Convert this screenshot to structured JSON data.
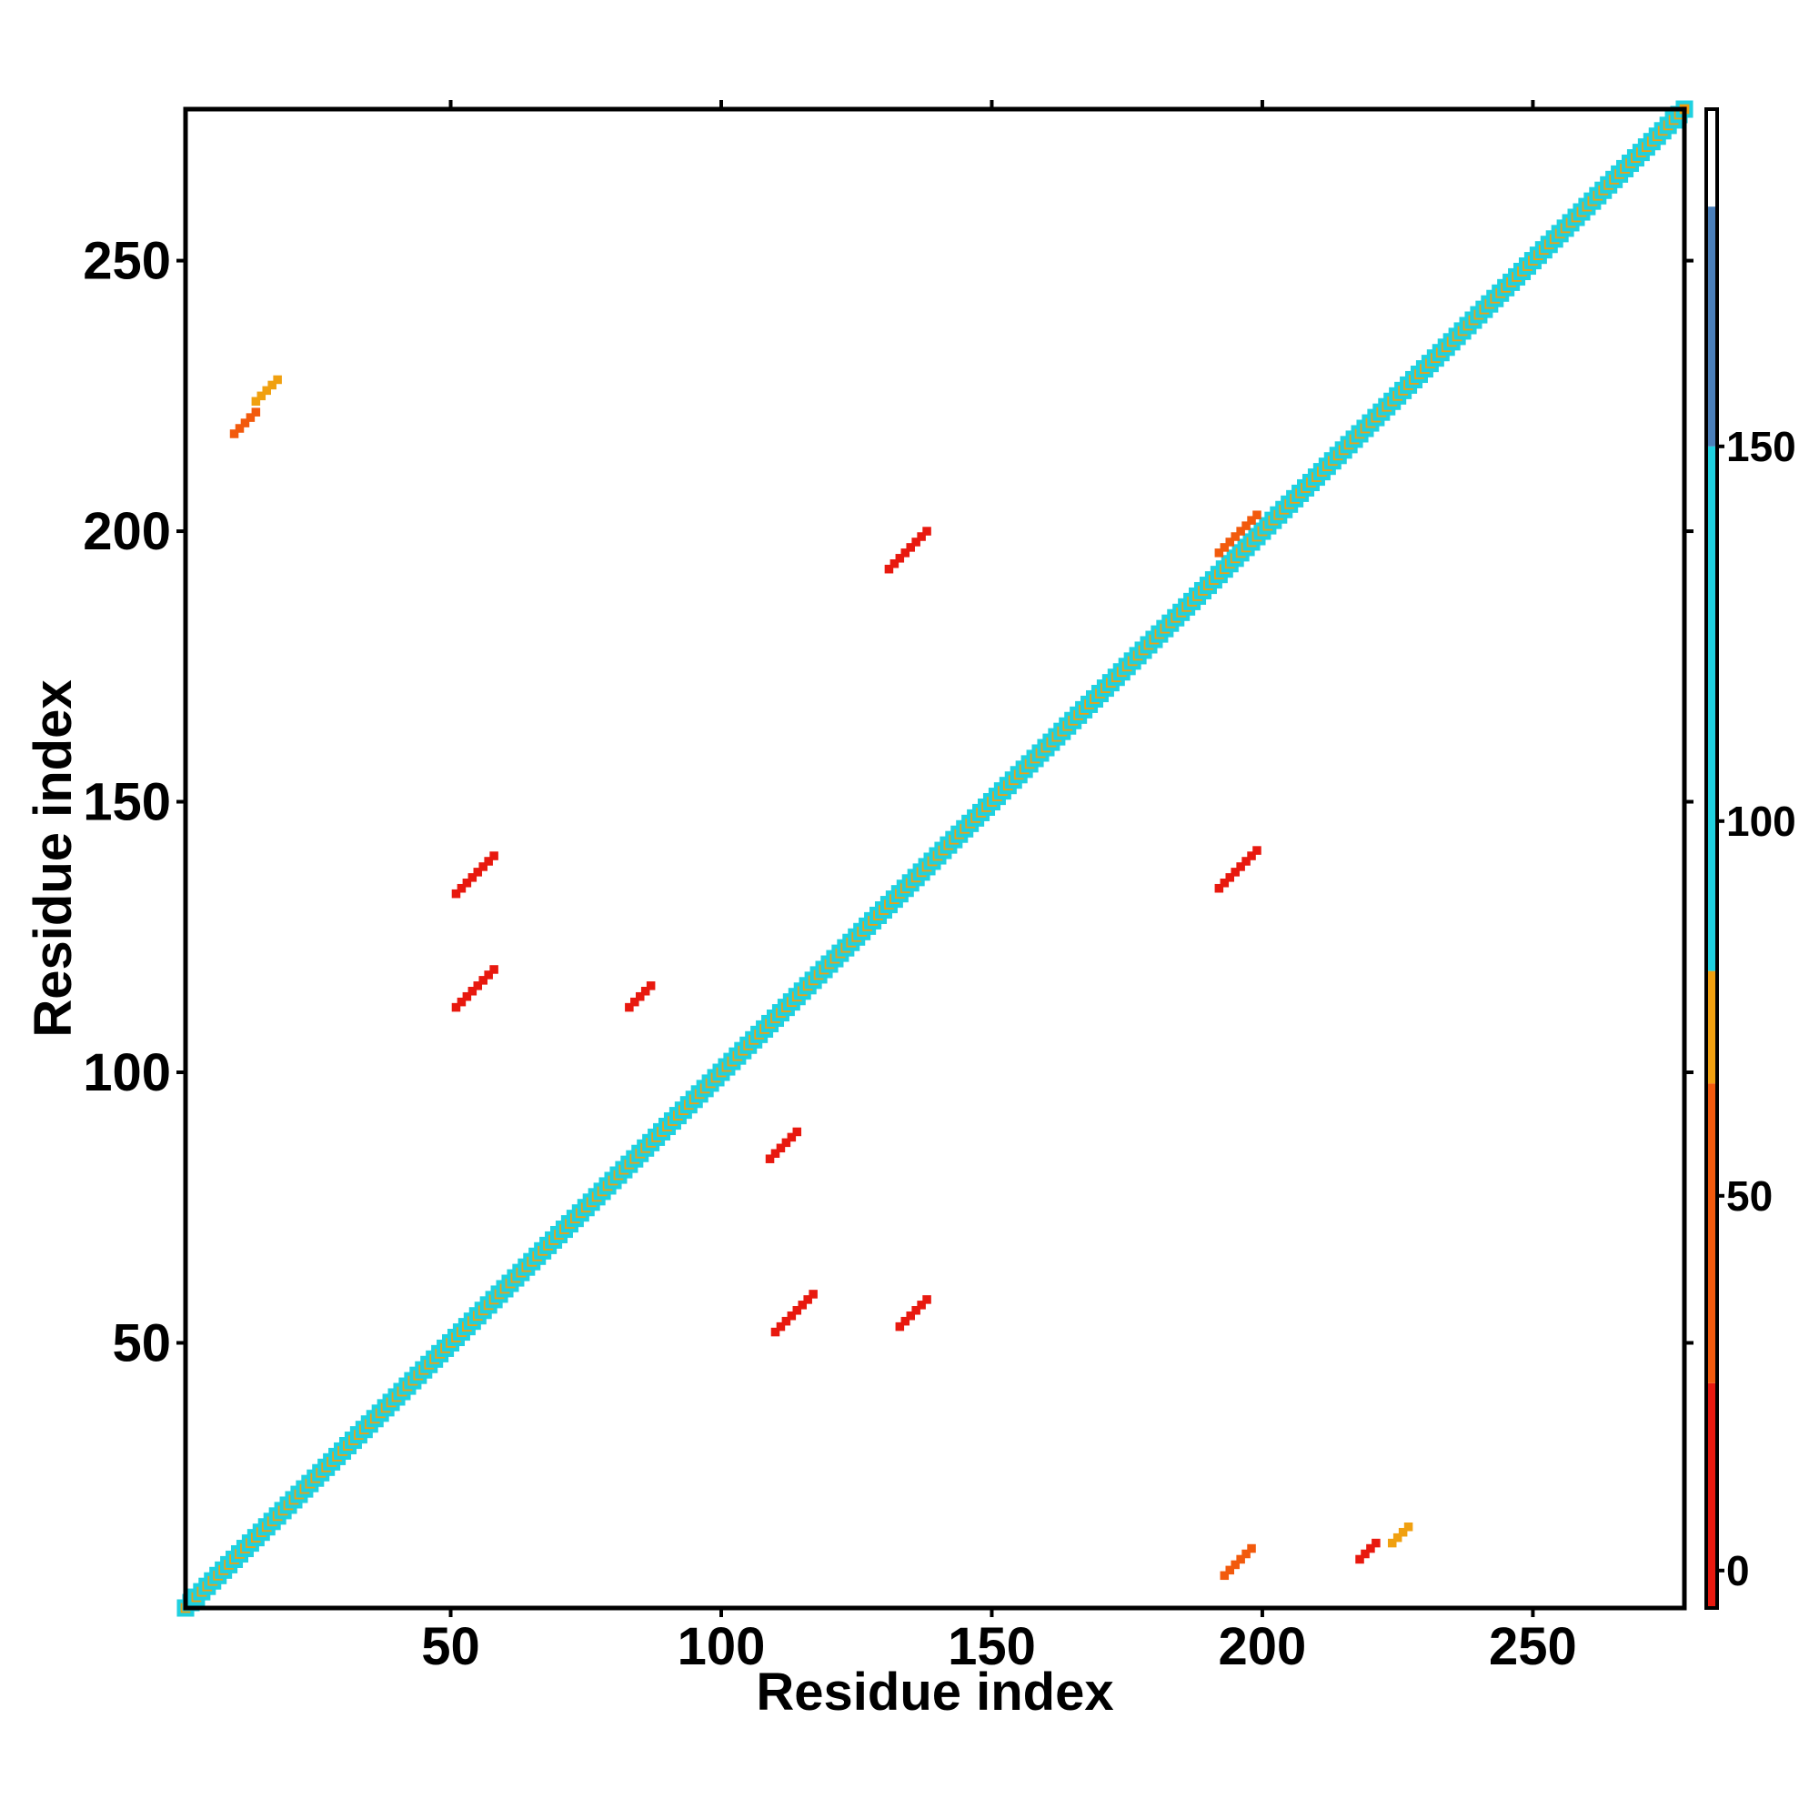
{
  "chart_data": {
    "type": "heatmap",
    "title": "",
    "xlabel": "Residue index",
    "ylabel": "Residue index",
    "xlim": [
      1,
      278
    ],
    "ylim": [
      1,
      278
    ],
    "x_ticks": [
      50,
      100,
      150,
      200,
      250
    ],
    "y_ticks": [
      50,
      100,
      150,
      200,
      250
    ],
    "colorbar": {
      "ticks": [
        0,
        50,
        100,
        150
      ],
      "range": [
        -5,
        195
      ],
      "bands": [
        {
          "from": -5,
          "to": 25,
          "color": "#e8190f"
        },
        {
          "from": 25,
          "to": 65,
          "color": "#f25a0d"
        },
        {
          "from": 65,
          "to": 80,
          "color": "#f0a010"
        },
        {
          "from": 80,
          "to": 150,
          "color": "#1fd1e0"
        },
        {
          "from": 150,
          "to": 182,
          "color": "#4a7fba"
        },
        {
          "from": 182,
          "to": 195,
          "color": "#ffffff"
        }
      ]
    },
    "diagonal": {
      "start": 1,
      "end": 278
    },
    "blocks": [
      {
        "x": 192,
        "y": 196,
        "len": 8,
        "dir": 1,
        "color": "#f25a0d"
      },
      {
        "x": 10,
        "y": 218,
        "len": 5,
        "dir": 1,
        "color": "#f25a0d"
      },
      {
        "x": 14,
        "y": 224,
        "len": 5,
        "dir": 1,
        "color": "#f0a010"
      },
      {
        "x": 51,
        "y": 133,
        "len": 8,
        "dir": 1,
        "color": "#e8190f"
      },
      {
        "x": 51,
        "y": 112,
        "len": 8,
        "dir": 1,
        "color": "#e8190f"
      },
      {
        "x": 83,
        "y": 112,
        "len": 5,
        "dir": 1,
        "color": "#e8190f"
      },
      {
        "x": 109,
        "y": 84,
        "len": 6,
        "dir": 1,
        "color": "#e8190f"
      },
      {
        "x": 131,
        "y": 193,
        "len": 8,
        "dir": 1,
        "color": "#e8190f"
      },
      {
        "x": 110,
        "y": 52,
        "len": 8,
        "dir": 1,
        "color": "#e8190f"
      },
      {
        "x": 133,
        "y": 53,
        "len": 6,
        "dir": 1,
        "color": "#e8190f"
      },
      {
        "x": 192,
        "y": 134,
        "len": 8,
        "dir": 1,
        "color": "#e8190f"
      },
      {
        "x": 193,
        "y": 7,
        "len": 6,
        "dir": 1,
        "color": "#f25a0d"
      },
      {
        "x": 218,
        "y": 10,
        "len": 4,
        "dir": 1,
        "color": "#e8190f"
      },
      {
        "x": 224,
        "y": 13,
        "len": 4,
        "dir": 1,
        "color": "#f0a010"
      }
    ]
  }
}
